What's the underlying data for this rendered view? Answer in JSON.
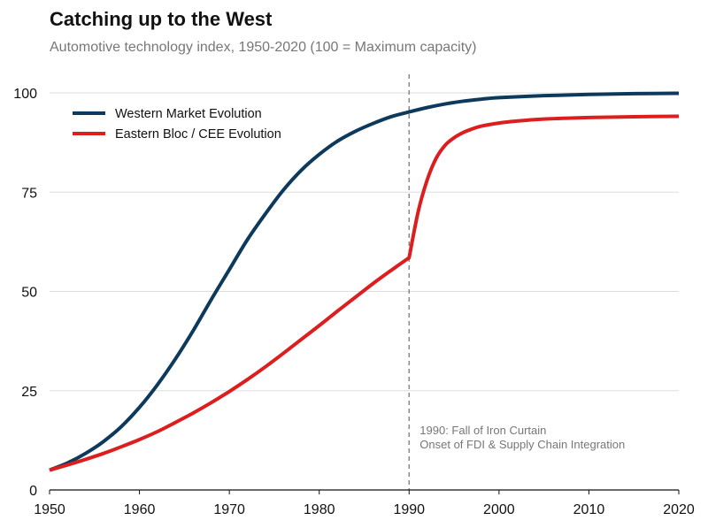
{
  "chart_data": {
    "type": "line",
    "title": "Catching up to the West",
    "subtitle": "Automotive technology index, 1950-2020 (100 = Maximum capacity)",
    "xlabel": "",
    "ylabel": "",
    "xlim": [
      1950,
      2020
    ],
    "ylim": [
      0,
      100
    ],
    "x_ticks": [
      1950,
      1960,
      1970,
      1980,
      1990,
      2000,
      2010,
      2020
    ],
    "y_ticks": [
      0,
      25,
      50,
      75,
      100
    ],
    "grid": "horizontal",
    "legend_position": "top-left",
    "series": [
      {
        "name": "Western Market Evolution",
        "color": "#0d3a5c",
        "x": [
          1950,
          1952,
          1954,
          1956,
          1958,
          1960,
          1962,
          1964,
          1966,
          1968,
          1970,
          1972,
          1974,
          1976,
          1978,
          1980,
          1982,
          1984,
          1986,
          1988,
          1990,
          1992,
          1994,
          1996,
          1998,
          2000,
          2005,
          2010,
          2015,
          2020
        ],
        "values": [
          5,
          6.8,
          9.2,
          12.2,
          16,
          20.8,
          26.5,
          33,
          40.2,
          48,
          55.5,
          63,
          69.5,
          75.5,
          80.5,
          84.5,
          87.8,
          90.3,
          92.3,
          94,
          95.2,
          96.3,
          97.2,
          97.9,
          98.4,
          98.8,
          99.3,
          99.6,
          99.8,
          99.9
        ]
      },
      {
        "name": "Eastern Bloc / CEE Evolution",
        "color": "#dc1e1e",
        "x": [
          1950,
          1952,
          1954,
          1956,
          1958,
          1960,
          1962,
          1964,
          1966,
          1968,
          1970,
          1972,
          1974,
          1976,
          1978,
          1980,
          1982,
          1984,
          1986,
          1988,
          1990,
          1991,
          1992,
          1993,
          1994,
          1995,
          1996,
          1997,
          1998,
          2000,
          2002,
          2005,
          2010,
          2015,
          2020
        ],
        "values": [
          5,
          6.3,
          7.7,
          9.2,
          10.9,
          12.7,
          14.7,
          17,
          19.4,
          22,
          24.8,
          27.8,
          31,
          34.4,
          37.9,
          41.4,
          45,
          48.5,
          52,
          55.3,
          58.5,
          70,
          78,
          83.5,
          86.8,
          88.7,
          90,
          90.9,
          91.6,
          92.4,
          92.9,
          93.4,
          93.8,
          94,
          94.1
        ]
      }
    ],
    "annotations": [
      {
        "x": 1990,
        "style": "dashed-vertical-line",
        "lines": [
          "1990: Fall of Iron Curtain",
          "Onset of FDI & Supply Chain Integration"
        ]
      }
    ]
  }
}
